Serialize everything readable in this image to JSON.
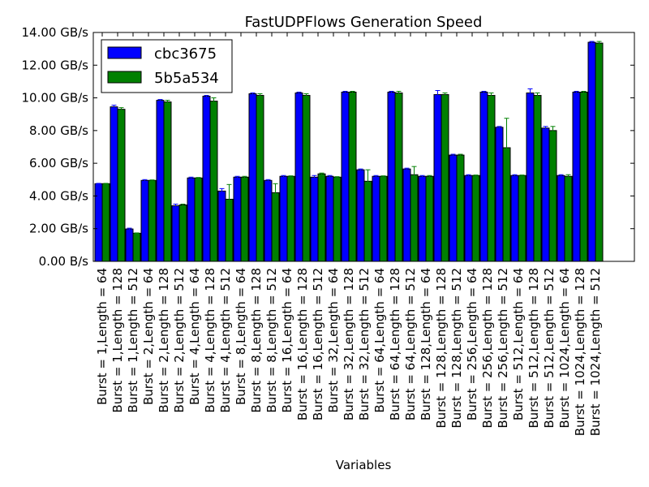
{
  "chart_data": {
    "type": "bar",
    "title": "FastUDPFlows Generation Speed",
    "xlabel": "Variables",
    "ylabel": "",
    "ylim": [
      0,
      14
    ],
    "yticks": [
      0,
      2,
      4,
      6,
      8,
      10,
      12,
      14
    ],
    "ytick_labels": [
      "0.00 B/s",
      "2.00 GB/s",
      "4.00 GB/s",
      "6.00 GB/s",
      "8.00 GB/s",
      "10.00 GB/s",
      "12.00 GB/s",
      "14.00 GB/s"
    ],
    "legend_position": "top-left",
    "grid": false,
    "categories": [
      "Burst = 1,Length = 64",
      "Burst = 1,Length = 128",
      "Burst = 1,Length = 512",
      "Burst = 2,Length = 64",
      "Burst = 2,Length = 128",
      "Burst = 2,Length = 512",
      "Burst = 4,Length = 64",
      "Burst = 4,Length = 128",
      "Burst = 4,Length = 512",
      "Burst = 8,Length = 64",
      "Burst = 8,Length = 128",
      "Burst = 8,Length = 512",
      "Burst = 16,Length = 64",
      "Burst = 16,Length = 128",
      "Burst = 16,Length = 512",
      "Burst = 32,Length = 64",
      "Burst = 32,Length = 128",
      "Burst = 32,Length = 512",
      "Burst = 64,Length = 64",
      "Burst = 64,Length = 128",
      "Burst = 64,Length = 512",
      "Burst = 128,Length = 64",
      "Burst = 128,Length = 128",
      "Burst = 128,Length = 512",
      "Burst = 256,Length = 64",
      "Burst = 256,Length = 128",
      "Burst = 256,Length = 512",
      "Burst = 512,Length = 64",
      "Burst = 512,Length = 128",
      "Burst = 512,Length = 512",
      "Burst = 1024,Length = 64",
      "Burst = 1024,Length = 128",
      "Burst = 1024,Length = 512"
    ],
    "series": [
      {
        "name": "cbc3675",
        "color": "#0000ff",
        "values": [
          4.75,
          9.45,
          1.98,
          4.95,
          9.85,
          3.4,
          5.1,
          10.1,
          4.3,
          5.15,
          10.25,
          4.95,
          5.2,
          10.3,
          5.15,
          5.2,
          10.35,
          5.6,
          5.2,
          10.35,
          5.65,
          5.2,
          10.2,
          6.5,
          5.25,
          10.35,
          8.2,
          5.25,
          10.3,
          8.15,
          5.25,
          10.35,
          13.4
        ],
        "errors": [
          0.02,
          0.1,
          0.05,
          0.05,
          0.05,
          0.1,
          0.05,
          0.05,
          0.15,
          0.05,
          0.05,
          0.05,
          0.05,
          0.05,
          0.1,
          0.05,
          0.05,
          0.05,
          0.05,
          0.05,
          0.05,
          0.05,
          0.25,
          0.05,
          0.05,
          0.05,
          0.05,
          0.05,
          0.25,
          0.1,
          0.05,
          0.05,
          0.05
        ]
      },
      {
        "name": "5b5a534",
        "color": "#008000",
        "values": [
          4.75,
          9.3,
          1.72,
          4.95,
          9.75,
          3.45,
          5.1,
          9.8,
          3.8,
          5.15,
          10.15,
          4.2,
          5.2,
          10.15,
          5.35,
          5.15,
          10.35,
          4.9,
          5.2,
          10.3,
          5.3,
          5.2,
          10.2,
          6.5,
          5.25,
          10.15,
          6.95,
          5.25,
          10.15,
          8.0,
          5.2,
          10.35,
          13.35
        ],
        "errors": [
          0.02,
          0.1,
          0.02,
          0.03,
          0.1,
          0.05,
          0.03,
          0.2,
          0.9,
          0.05,
          0.1,
          0.55,
          0.03,
          0.1,
          0.05,
          0.03,
          0.05,
          0.7,
          0.03,
          0.1,
          0.5,
          0.05,
          0.1,
          0.05,
          0.03,
          0.15,
          1.8,
          0.03,
          0.15,
          0.25,
          0.1,
          0.05,
          0.1
        ]
      }
    ]
  }
}
